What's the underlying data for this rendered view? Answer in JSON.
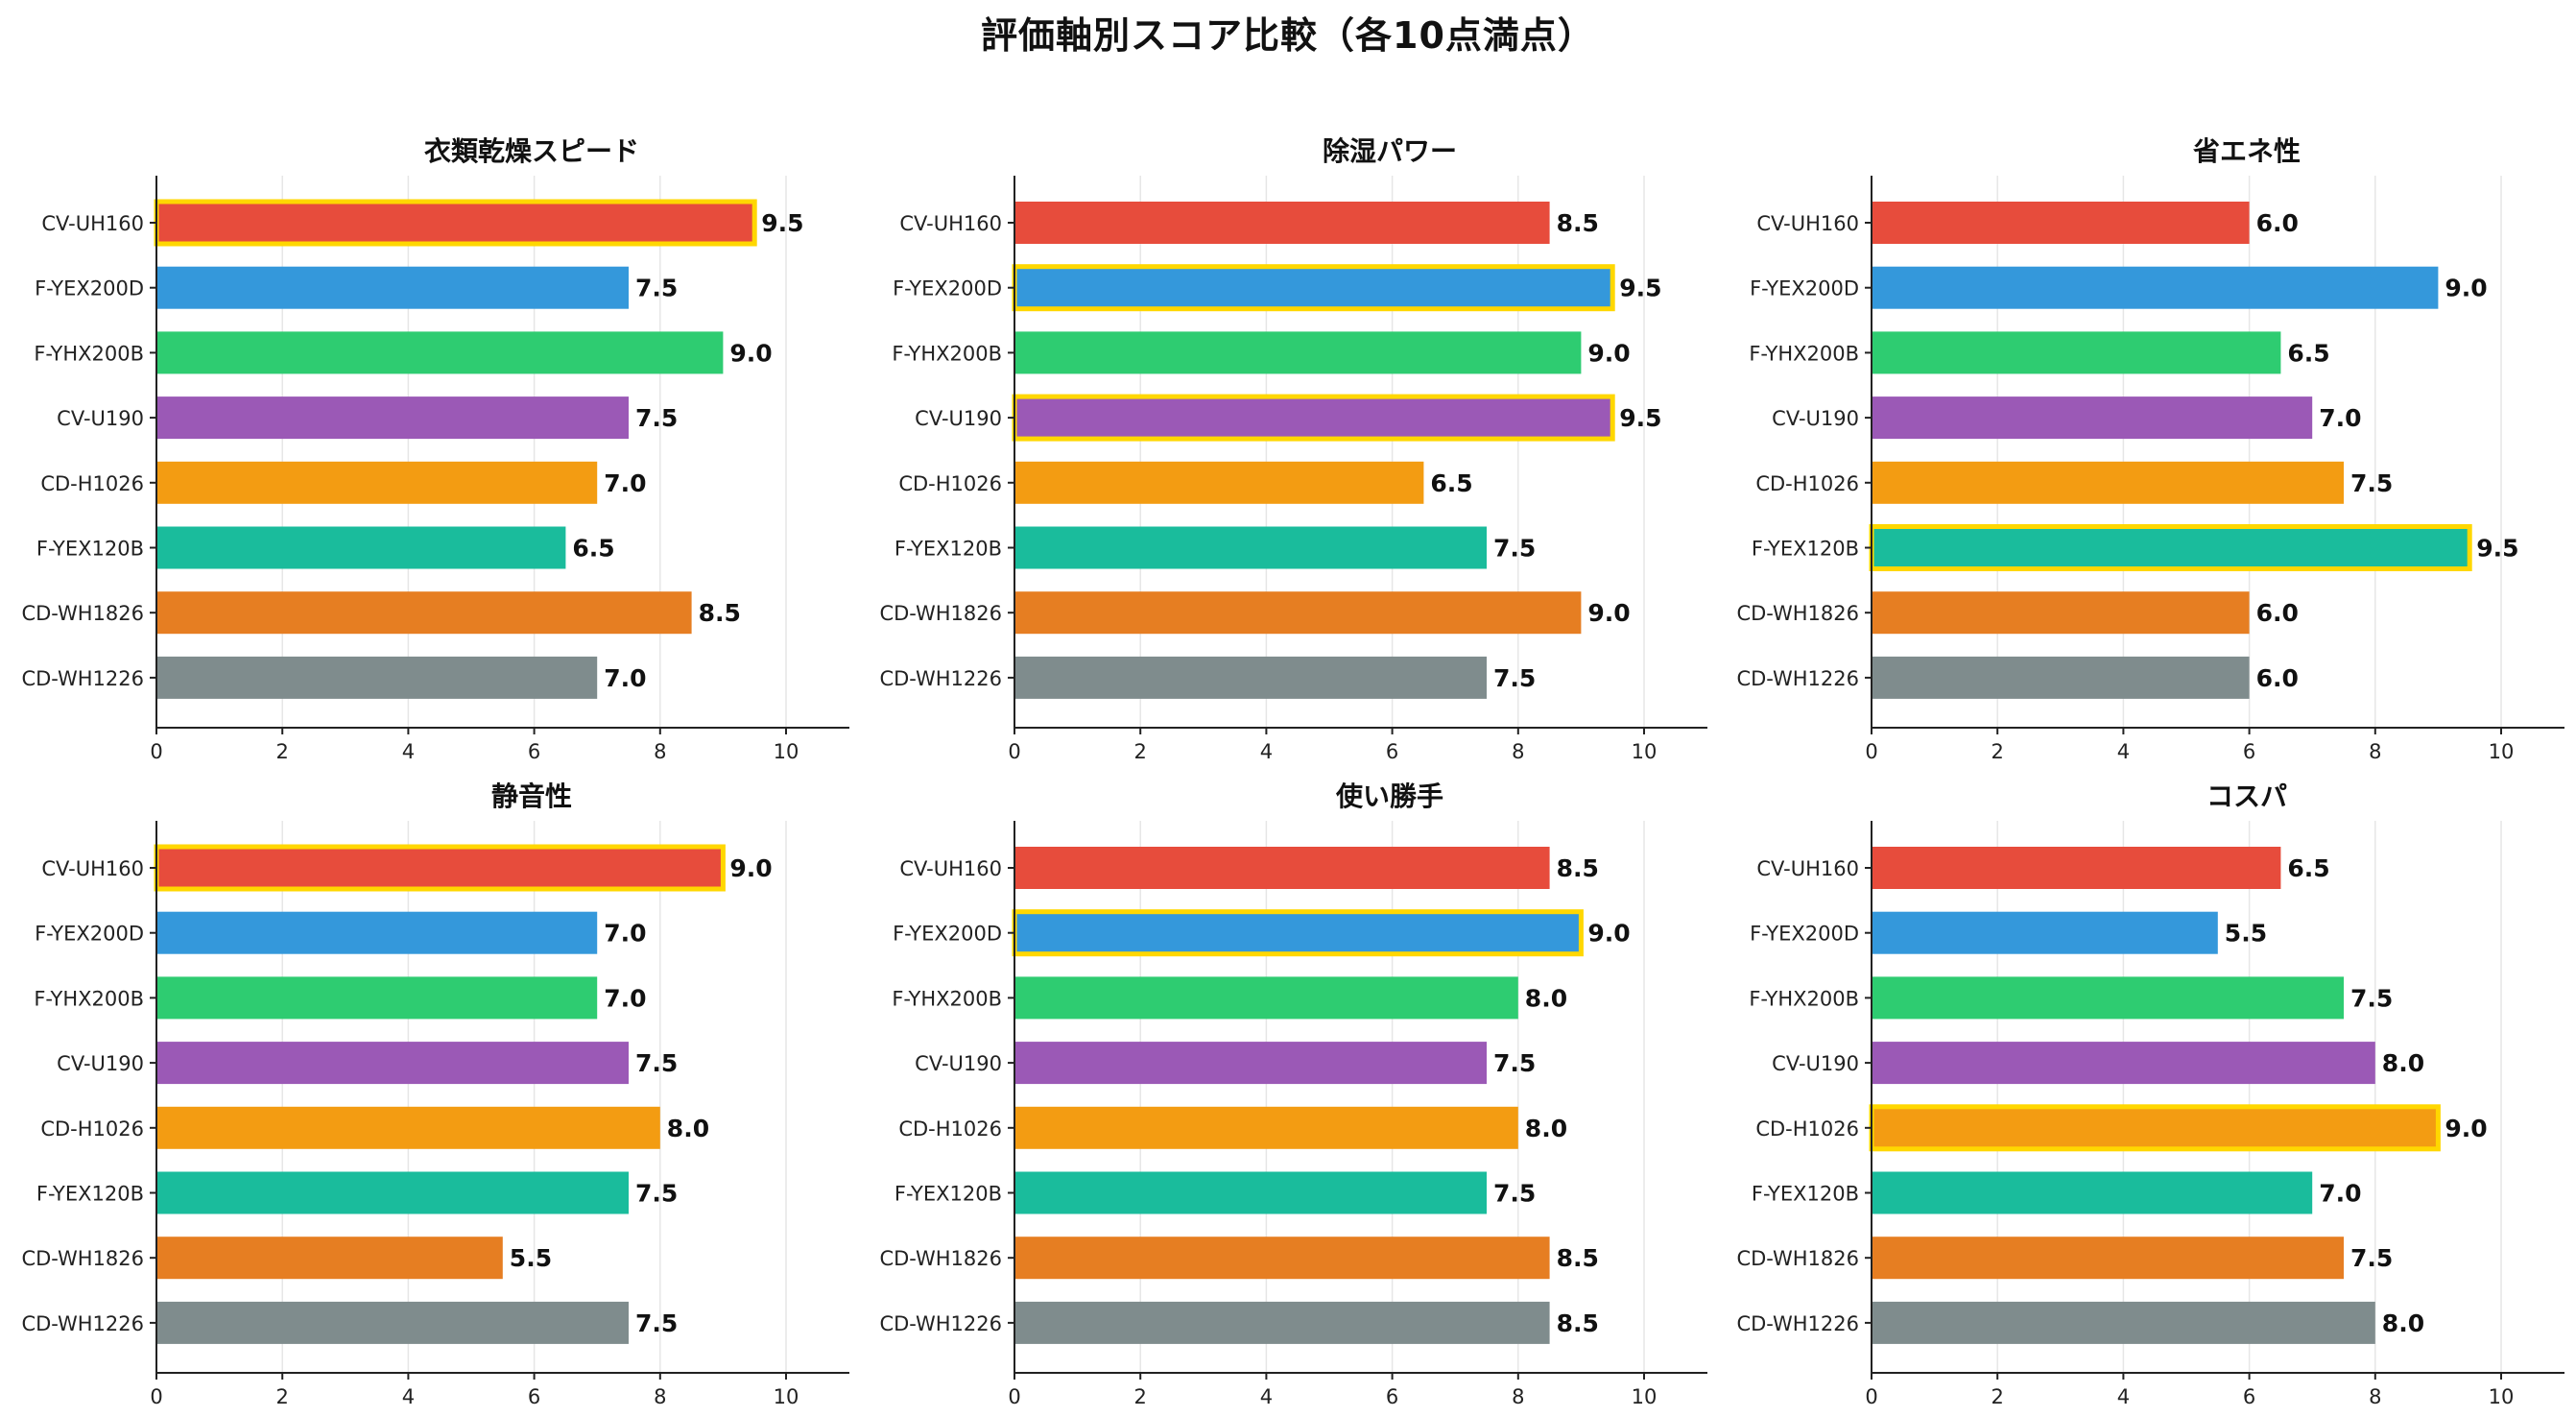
{
  "title": "評価軸別スコア比較（各10点満点）",
  "chart_data": {
    "type": "bar",
    "orientation": "horizontal",
    "xlim": [
      0,
      11.4
    ],
    "xticks": [
      0,
      2,
      4,
      6,
      8,
      10
    ],
    "grid": "vertical",
    "models": [
      "CV-UH160",
      "F-YEX200D",
      "F-YHX200B",
      "CV-U190",
      "CD-H1026",
      "F-YEX120B",
      "CD-WH1826",
      "CD-WH1226"
    ],
    "colors": [
      "#e74c3c",
      "#3498db",
      "#2ecc71",
      "#9b59b6",
      "#f39c12",
      "#1abc9c",
      "#e67e22",
      "#7f8c8d"
    ],
    "highlight_color": "#ffd700",
    "panels": [
      {
        "title": "衣類乾燥スピード",
        "values": [
          9.5,
          7.5,
          9.0,
          7.5,
          7.0,
          6.5,
          8.5,
          7.0
        ]
      },
      {
        "title": "除湿パワー",
        "values": [
          8.5,
          9.5,
          9.0,
          9.5,
          6.5,
          7.5,
          9.0,
          7.5
        ]
      },
      {
        "title": "省エネ性",
        "values": [
          6.0,
          9.0,
          6.5,
          7.0,
          7.5,
          9.5,
          6.0,
          6.0
        ]
      },
      {
        "title": "静音性",
        "values": [
          9.0,
          7.0,
          7.0,
          7.5,
          8.0,
          7.5,
          5.5,
          7.5
        ]
      },
      {
        "title": "使い勝手",
        "values": [
          8.5,
          9.0,
          8.0,
          7.5,
          8.0,
          7.5,
          8.5,
          8.5
        ]
      },
      {
        "title": "コスパ",
        "values": [
          6.5,
          5.5,
          7.5,
          8.0,
          9.0,
          7.0,
          7.5,
          8.0
        ]
      }
    ]
  }
}
